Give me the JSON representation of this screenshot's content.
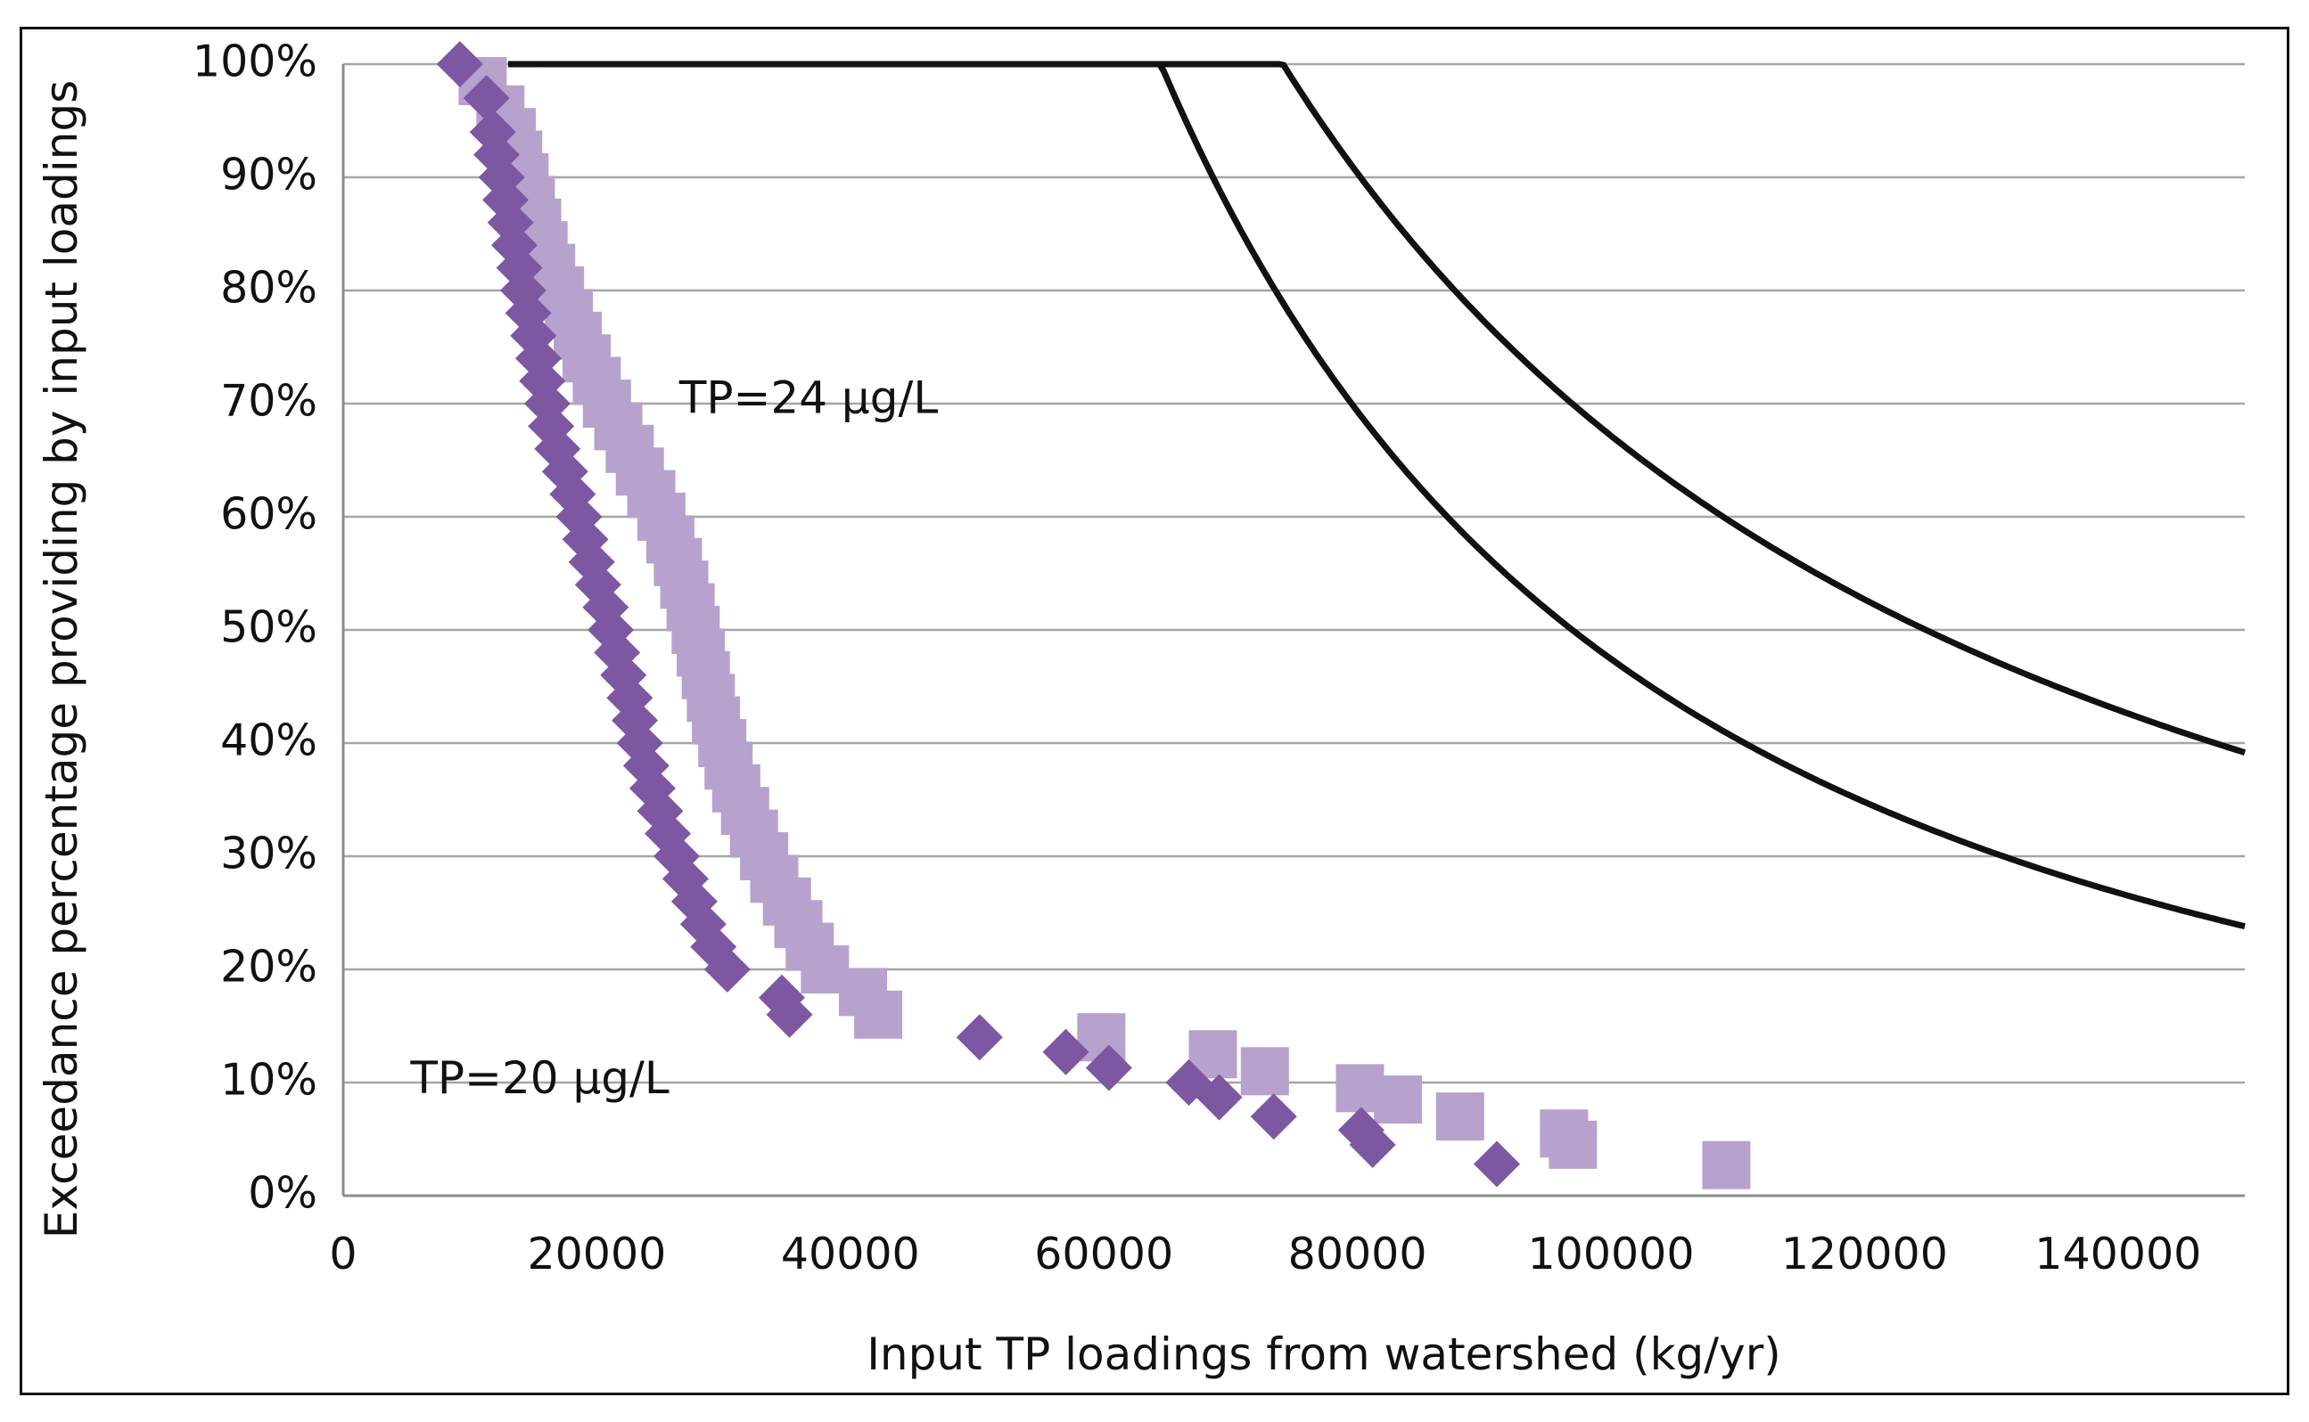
{
  "colors": {
    "observed_20": "#7e57a3",
    "observed_24": "#b7a2ce",
    "fit_line": "#111111",
    "grid": "#a6a6a6"
  },
  "chart_data": {
    "type": "scatter",
    "title": "",
    "xlabel": "Input TP loadings from watershed  (kg/yr)",
    "ylabel": "Exceedance percentage providing by input  loadings",
    "xlim": [
      0,
      150000
    ],
    "ylim": [
      0,
      1
    ],
    "x_ticks": [
      "0",
      "20000",
      "40000",
      "60000",
      "80000",
      "100000",
      "120000",
      "140000"
    ],
    "x_tick_values": [
      0,
      20000,
      40000,
      60000,
      80000,
      100000,
      120000,
      140000
    ],
    "y_ticks": [
      "0%",
      "10%",
      "20%",
      "30%",
      "40%",
      "50%",
      "60%",
      "70%",
      "80%",
      "90%",
      "100%"
    ],
    "y_tick_values": [
      0,
      0.1,
      0.2,
      0.3,
      0.4,
      0.5,
      0.6,
      0.7,
      0.8,
      0.9,
      1.0
    ],
    "grid": true,
    "legend": "none",
    "annotations": [
      {
        "text": "TP=24 µg/L",
        "x": 26500,
        "y": 0.705
      },
      {
        "text": "TP=20 µg/L",
        "x": 5300,
        "y": 0.104
      }
    ],
    "series": [
      {
        "name": "TP=20 µg/L (observed)",
        "marker": "diamond",
        "color": "#7e57a3",
        "points": [
          [
            9200,
            1.0
          ],
          [
            11300,
            0.97
          ],
          [
            11800,
            0.94
          ],
          [
            12100,
            0.92
          ],
          [
            12500,
            0.9
          ],
          [
            12800,
            0.88
          ],
          [
            13200,
            0.86
          ],
          [
            13500,
            0.84
          ],
          [
            13900,
            0.82
          ],
          [
            14200,
            0.8
          ],
          [
            14600,
            0.78
          ],
          [
            15000,
            0.76
          ],
          [
            15400,
            0.74
          ],
          [
            15700,
            0.72
          ],
          [
            16100,
            0.7
          ],
          [
            16400,
            0.68
          ],
          [
            16900,
            0.66
          ],
          [
            17500,
            0.64
          ],
          [
            18100,
            0.62
          ],
          [
            18600,
            0.6
          ],
          [
            19100,
            0.58
          ],
          [
            19600,
            0.56
          ],
          [
            20100,
            0.54
          ],
          [
            20700,
            0.52
          ],
          [
            21100,
            0.5
          ],
          [
            21600,
            0.48
          ],
          [
            22100,
            0.46
          ],
          [
            22600,
            0.44
          ],
          [
            23000,
            0.42
          ],
          [
            23400,
            0.4
          ],
          [
            23900,
            0.38
          ],
          [
            24400,
            0.36
          ],
          [
            25000,
            0.34
          ],
          [
            25600,
            0.32
          ],
          [
            26300,
            0.3
          ],
          [
            27000,
            0.28
          ],
          [
            27700,
            0.26
          ],
          [
            28400,
            0.24
          ],
          [
            29200,
            0.22
          ],
          [
            30300,
            0.2
          ],
          [
            34600,
            0.175
          ],
          [
            35200,
            0.16
          ],
          [
            50200,
            0.14
          ],
          [
            57000,
            0.127
          ],
          [
            60400,
            0.113
          ],
          [
            66700,
            0.1
          ],
          [
            69100,
            0.087
          ],
          [
            73400,
            0.07
          ],
          [
            80300,
            0.058
          ],
          [
            81200,
            0.045
          ],
          [
            91000,
            0.028
          ]
        ]
      },
      {
        "name": "TP=24 µg/L (observed)",
        "marker": "square",
        "color": "#b7a2ce",
        "points": [
          [
            11000,
            0.985
          ],
          [
            12400,
            0.96
          ],
          [
            13300,
            0.94
          ],
          [
            13800,
            0.92
          ],
          [
            14300,
            0.9
          ],
          [
            14800,
            0.88
          ],
          [
            15300,
            0.86
          ],
          [
            15800,
            0.84
          ],
          [
            16400,
            0.82
          ],
          [
            17100,
            0.8
          ],
          [
            17800,
            0.78
          ],
          [
            18500,
            0.76
          ],
          [
            19200,
            0.74
          ],
          [
            20000,
            0.72
          ],
          [
            20800,
            0.7
          ],
          [
            21700,
            0.68
          ],
          [
            22600,
            0.66
          ],
          [
            23400,
            0.64
          ],
          [
            24300,
            0.62
          ],
          [
            25100,
            0.6
          ],
          [
            25800,
            0.58
          ],
          [
            26400,
            0.56
          ],
          [
            26900,
            0.54
          ],
          [
            27400,
            0.52
          ],
          [
            27800,
            0.5
          ],
          [
            28200,
            0.48
          ],
          [
            28600,
            0.46
          ],
          [
            29000,
            0.44
          ],
          [
            29400,
            0.42
          ],
          [
            29900,
            0.4
          ],
          [
            30400,
            0.38
          ],
          [
            31000,
            0.36
          ],
          [
            31700,
            0.34
          ],
          [
            32400,
            0.32
          ],
          [
            33200,
            0.3
          ],
          [
            34000,
            0.28
          ],
          [
            35000,
            0.26
          ],
          [
            35900,
            0.24
          ],
          [
            36800,
            0.22
          ],
          [
            38000,
            0.2
          ],
          [
            41000,
            0.18
          ],
          [
            42200,
            0.16
          ],
          [
            59800,
            0.14
          ],
          [
            68600,
            0.125
          ],
          [
            72700,
            0.11
          ],
          [
            80200,
            0.095
          ],
          [
            83200,
            0.085
          ],
          [
            88100,
            0.07
          ],
          [
            96300,
            0.055
          ],
          [
            97000,
            0.045
          ],
          [
            109100,
            0.027
          ]
        ]
      },
      {
        "name": "TP=20 µg/L fit",
        "marker": "line",
        "color": "#111111",
        "equation": "y = 1.5e8 * x^-1.70",
        "x_range": [
          13000,
          150000
        ]
      },
      {
        "name": "TP=24 µg/L fit",
        "marker": "line",
        "color": "#111111",
        "equation": "y = 3.0e6 * x^-1.33",
        "x_range": [
          15800,
          150000
        ]
      }
    ]
  }
}
